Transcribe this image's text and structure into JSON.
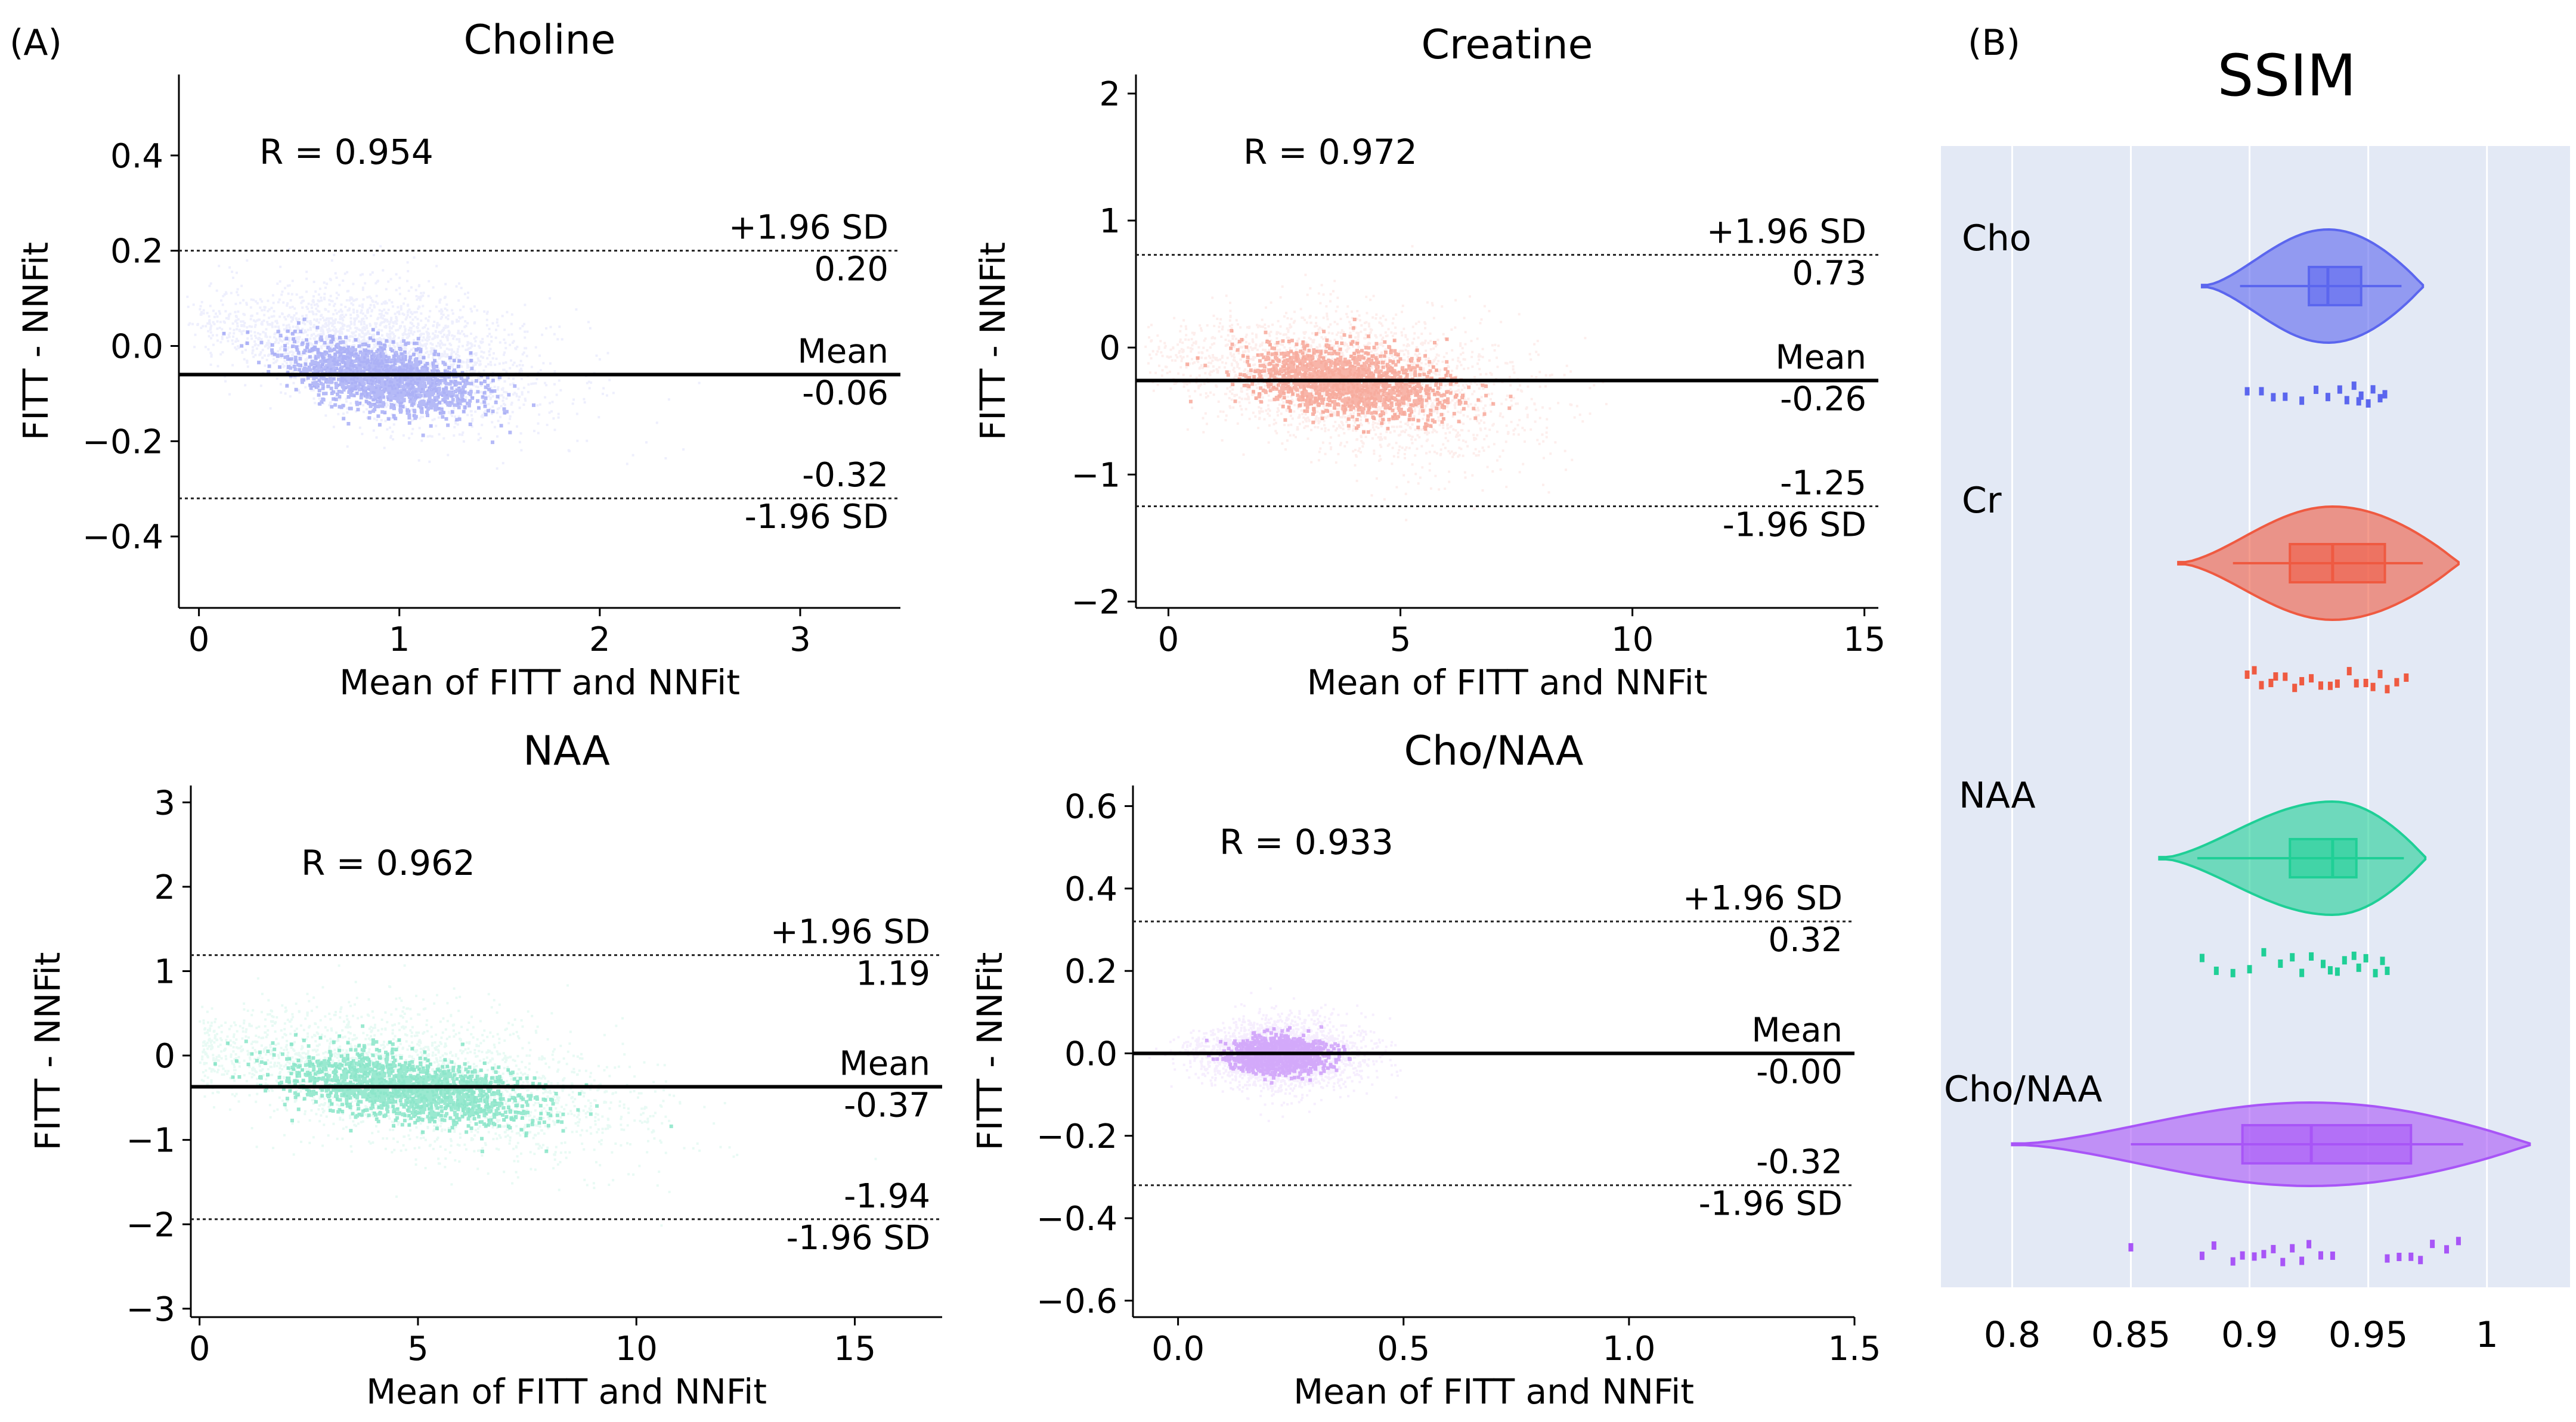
{
  "panel_labels": {
    "a": "(A)",
    "b": "(B)"
  },
  "chart_data": [
    {
      "type": "scatter",
      "title": "Choline",
      "xlabel": "Mean of FITT and NNFit",
      "ylabel": "FITT - NNFit",
      "xlim": [
        -0.1,
        3.5
      ],
      "ylim": [
        -0.55,
        0.57
      ],
      "xticks": [
        0,
        1,
        2,
        3
      ],
      "xtick_labels": [
        "0",
        "1",
        "2",
        "3"
      ],
      "yticks": [
        -0.4,
        -0.2,
        0.0,
        0.2,
        0.4
      ],
      "ytick_labels": [
        "−0.4",
        "−0.2",
        "0.0",
        "0.2",
        "0.4"
      ],
      "color": "#5b66ee",
      "r_label": "R = 0.954",
      "mean": -0.06,
      "upper_loa": 0.2,
      "lower_loa": -0.32,
      "upper_label": "+1.96 SD",
      "upper_value": "0.20",
      "mean_label": "Mean",
      "mean_value": "-0.06",
      "lower_value": "-0.32",
      "lower_label": "-1.96 SD",
      "cloud": {
        "x_center": 0.9,
        "x_spread": 0.42,
        "slope": -0.12,
        "intercept": 0.05,
        "y_spread": 0.07
      }
    },
    {
      "type": "scatter",
      "title": "Creatine",
      "xlabel": "Mean of FITT and NNFit",
      "ylabel": "FITT - NNFit",
      "xlim": [
        -0.7,
        15.3
      ],
      "ylim": [
        -2.05,
        2.15
      ],
      "xticks": [
        0,
        5,
        10,
        15
      ],
      "xtick_labels": [
        "0",
        "5",
        "10",
        "15"
      ],
      "yticks": [
        -2,
        -1,
        0,
        1,
        2
      ],
      "ytick_labels": [
        "−2",
        "−1",
        "0",
        "1",
        "2"
      ],
      "color": "#ef5a41",
      "r_label": "R = 0.972",
      "mean": -0.26,
      "upper_loa": 0.73,
      "lower_loa": -1.25,
      "upper_label": "+1.96 SD",
      "upper_value": "0.73",
      "mean_label": "Mean",
      "mean_value": "-0.26",
      "lower_value": "-1.25",
      "lower_label": "-1.96 SD",
      "cloud": {
        "x_center": 3.8,
        "x_spread": 1.9,
        "slope": -0.08,
        "intercept": 0.0,
        "y_spread": 0.28
      }
    },
    {
      "type": "scatter",
      "title": "NAA",
      "xlabel": "Mean of FITT and NNFit",
      "ylabel": "FITT - NNFit",
      "xlim": [
        -0.2,
        17.0
      ],
      "ylim": [
        -3.1,
        3.2
      ],
      "xticks": [
        0,
        5,
        10,
        15
      ],
      "xtick_labels": [
        "0",
        "5",
        "10",
        "15"
      ],
      "yticks": [
        -3,
        -2,
        -1,
        0,
        1,
        2,
        3
      ],
      "ytick_labels": [
        "−3",
        "−2",
        "−1",
        "0",
        "1",
        "2",
        "3"
      ],
      "color": "#1fcf96",
      "r_label": "R = 0.962",
      "mean": -0.37,
      "upper_loa": 1.19,
      "lower_loa": -1.94,
      "upper_label": "+1.96 SD",
      "upper_value": "1.19",
      "mean_label": "Mean",
      "mean_value": "-0.37",
      "lower_value": "-1.94",
      "lower_label": "-1.96 SD",
      "cloud": {
        "x_center": 4.8,
        "x_spread": 2.6,
        "slope": -0.12,
        "intercept": 0.1,
        "y_spread": 0.42
      }
    },
    {
      "type": "scatter",
      "title": "Cho/NAA",
      "xlabel": "Mean of FITT and NNFit",
      "ylabel": "FITT - NNFit",
      "xlim": [
        -0.1,
        1.5
      ],
      "ylim": [
        -0.64,
        0.65
      ],
      "xticks": [
        0.0,
        0.5,
        1.0,
        1.5
      ],
      "xtick_labels": [
        "0.0",
        "0.5",
        "1.0",
        "1.5"
      ],
      "yticks": [
        -0.6,
        -0.4,
        -0.2,
        0.0,
        0.2,
        0.4,
        0.6
      ],
      "ytick_labels": [
        "−0.6",
        "−0.4",
        "−0.2",
        "0.0",
        "0.2",
        "0.4",
        "0.6"
      ],
      "color": "#a855f7",
      "r_label": "R = 0.933",
      "mean": -0.0,
      "upper_loa": 0.32,
      "lower_loa": -0.32,
      "upper_label": "+1.96 SD",
      "upper_value": "0.32",
      "mean_label": "Mean",
      "mean_value": "-0.00",
      "lower_value": "-0.32",
      "lower_label": "-1.96 SD",
      "cloud": {
        "x_center": 0.22,
        "x_spread": 0.09,
        "slope": 0.0,
        "intercept": 0.0,
        "y_spread": 0.045
      }
    },
    {
      "type": "violin",
      "title": "SSIM",
      "xlim": [
        0.77,
        1.035
      ],
      "xticks": [
        0.8,
        0.85,
        0.9,
        0.95,
        1.0
      ],
      "xtick_labels": [
        "0.8",
        "0.85",
        "0.9",
        "0.95",
        "1"
      ],
      "background": "#e3e9f5",
      "series": [
        {
          "name": "Cho",
          "color": "#5b66ee",
          "q1": 0.925,
          "median": 0.933,
          "q3": 0.947,
          "whisker_low": 0.896,
          "whisker_high": 0.964,
          "min": 0.88,
          "max": 0.973,
          "points": [
            0.899,
            0.905,
            0.91,
            0.915,
            0.922,
            0.928,
            0.933,
            0.938,
            0.941,
            0.944,
            0.946,
            0.947,
            0.95,
            0.952,
            0.955,
            0.957
          ]
        },
        {
          "name": "Cr",
          "color": "#ef5a41",
          "q1": 0.917,
          "median": 0.935,
          "q3": 0.957,
          "whisker_low": 0.893,
          "whisker_high": 0.973,
          "min": 0.87,
          "max": 0.988,
          "points": [
            0.899,
            0.902,
            0.905,
            0.909,
            0.911,
            0.915,
            0.919,
            0.922,
            0.926,
            0.93,
            0.934,
            0.937,
            0.942,
            0.945,
            0.949,
            0.952,
            0.955,
            0.958,
            0.962,
            0.966
          ]
        },
        {
          "name": "NAA",
          "color": "#1fcf96",
          "q1": 0.917,
          "median": 0.935,
          "q3": 0.945,
          "whisker_low": 0.878,
          "whisker_high": 0.965,
          "min": 0.862,
          "max": 0.974,
          "points": [
            0.88,
            0.886,
            0.893,
            0.9,
            0.906,
            0.913,
            0.918,
            0.922,
            0.926,
            0.931,
            0.934,
            0.937,
            0.94,
            0.944,
            0.946,
            0.949,
            0.953,
            0.956,
            0.958
          ]
        },
        {
          "name": "Cho/NAA",
          "color": "#a855f7",
          "q1": 0.897,
          "median": 0.926,
          "q3": 0.968,
          "whisker_low": 0.85,
          "whisker_high": 0.99,
          "min": 0.8,
          "max": 1.018,
          "points": [
            0.85,
            0.88,
            0.885,
            0.893,
            0.897,
            0.902,
            0.906,
            0.91,
            0.914,
            0.918,
            0.922,
            0.925,
            0.93,
            0.935,
            0.958,
            0.963,
            0.968,
            0.972,
            0.977,
            0.983,
            0.988
          ]
        }
      ]
    }
  ]
}
